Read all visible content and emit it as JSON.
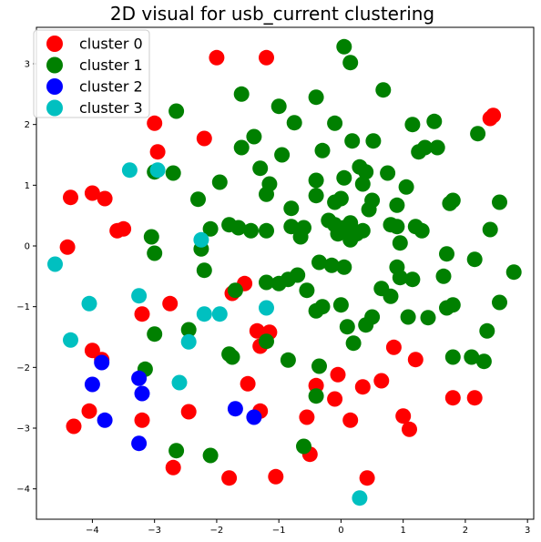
{
  "chart_data": {
    "type": "scatter",
    "title": "2D visual for usb_current clustering",
    "xlabel": "",
    "ylabel": "",
    "xlim": [
      -4.9,
      3.1
    ],
    "ylim": [
      -4.5,
      3.6
    ],
    "x_ticks": [
      -4,
      -3,
      -2,
      -1,
      0,
      1,
      2,
      3
    ],
    "y_ticks": [
      -4,
      -3,
      -2,
      -1,
      0,
      1,
      2,
      3
    ],
    "grid": false,
    "legend_position": "top-left",
    "series": [
      {
        "name": "cluster 0",
        "color": "#ff0000",
        "points": [
          [
            -2.0,
            3.1
          ],
          [
            -1.2,
            3.1
          ],
          [
            2.4,
            2.1
          ],
          [
            2.45,
            2.15
          ],
          [
            -3.0,
            2.02
          ],
          [
            -2.2,
            1.77
          ],
          [
            -2.95,
            1.55
          ],
          [
            -4.35,
            0.8
          ],
          [
            -4.0,
            0.87
          ],
          [
            -3.8,
            0.78
          ],
          [
            -3.6,
            0.25
          ],
          [
            -3.5,
            0.28
          ],
          [
            -4.4,
            -0.02
          ],
          [
            -2.75,
            -0.95
          ],
          [
            -3.2,
            -1.12
          ],
          [
            -1.75,
            -0.78
          ],
          [
            -1.55,
            -0.62
          ],
          [
            -1.35,
            -1.4
          ],
          [
            -1.15,
            -1.42
          ],
          [
            -1.3,
            -1.65
          ],
          [
            -4.0,
            -1.72
          ],
          [
            -3.85,
            -1.87
          ],
          [
            -4.05,
            -2.72
          ],
          [
            -4.3,
            -2.97
          ],
          [
            -3.2,
            -2.87
          ],
          [
            -2.45,
            -2.73
          ],
          [
            -1.5,
            -2.27
          ],
          [
            -1.3,
            -2.72
          ],
          [
            -0.4,
            -2.3
          ],
          [
            -0.05,
            -2.12
          ],
          [
            -0.1,
            -2.52
          ],
          [
            0.35,
            -2.32
          ],
          [
            0.15,
            -2.87
          ],
          [
            -0.55,
            -2.82
          ],
          [
            0.65,
            -2.22
          ],
          [
            0.85,
            -1.67
          ],
          [
            1.2,
            -1.87
          ],
          [
            1.0,
            -2.8
          ],
          [
            1.1,
            -3.02
          ],
          [
            1.8,
            -2.5
          ],
          [
            2.15,
            -2.5
          ],
          [
            -0.5,
            -3.43
          ],
          [
            -2.7,
            -3.65
          ],
          [
            -1.8,
            -3.82
          ],
          [
            -1.05,
            -3.8
          ],
          [
            0.42,
            -3.82
          ]
        ]
      },
      {
        "name": "cluster 1",
        "color": "#008000",
        "points": [
          [
            0.05,
            3.28
          ],
          [
            0.15,
            3.02
          ],
          [
            0.68,
            2.57
          ],
          [
            -1.6,
            2.5
          ],
          [
            -0.4,
            2.45
          ],
          [
            -1.0,
            2.3
          ],
          [
            -2.65,
            2.22
          ],
          [
            -0.75,
            2.03
          ],
          [
            -0.1,
            2.02
          ],
          [
            1.15,
            2.0
          ],
          [
            1.5,
            2.05
          ],
          [
            2.2,
            1.85
          ],
          [
            -1.4,
            1.8
          ],
          [
            -1.6,
            1.62
          ],
          [
            0.18,
            1.73
          ],
          [
            0.52,
            1.73
          ],
          [
            -0.95,
            1.5
          ],
          [
            1.35,
            1.62
          ],
          [
            1.55,
            1.62
          ],
          [
            1.25,
            1.55
          ],
          [
            -0.3,
            1.57
          ],
          [
            -1.3,
            1.28
          ],
          [
            -2.7,
            1.2
          ],
          [
            -3.0,
            1.22
          ],
          [
            0.3,
            1.3
          ],
          [
            0.4,
            1.22
          ],
          [
            0.75,
            1.2
          ],
          [
            -1.95,
            1.05
          ],
          [
            -0.4,
            1.08
          ],
          [
            0.05,
            1.12
          ],
          [
            0.35,
            1.02
          ],
          [
            1.05,
            0.97
          ],
          [
            -1.15,
            1.02
          ],
          [
            -1.2,
            0.85
          ],
          [
            -0.4,
            0.83
          ],
          [
            -0.1,
            0.72
          ],
          [
            0.0,
            0.78
          ],
          [
            0.5,
            0.75
          ],
          [
            0.9,
            0.67
          ],
          [
            1.75,
            0.7
          ],
          [
            1.8,
            0.75
          ],
          [
            2.55,
            0.72
          ],
          [
            -2.3,
            0.77
          ],
          [
            -0.8,
            0.62
          ],
          [
            -0.2,
            0.42
          ],
          [
            0.45,
            0.6
          ],
          [
            -1.65,
            0.3
          ],
          [
            -1.8,
            0.35
          ],
          [
            -1.45,
            0.25
          ],
          [
            -1.2,
            0.25
          ],
          [
            -0.8,
            0.32
          ],
          [
            -0.6,
            0.3
          ],
          [
            -0.65,
            0.15
          ],
          [
            -0.1,
            0.35
          ],
          [
            0.05,
            0.3
          ],
          [
            0.15,
            0.38
          ],
          [
            0.25,
            0.2
          ],
          [
            0.35,
            0.25
          ],
          [
            0.8,
            0.35
          ],
          [
            0.9,
            0.32
          ],
          [
            1.2,
            0.32
          ],
          [
            1.3,
            0.25
          ],
          [
            2.4,
            0.27
          ],
          [
            -0.05,
            0.2
          ],
          [
            0.15,
            0.1
          ],
          [
            -2.1,
            0.28
          ],
          [
            -3.05,
            0.15
          ],
          [
            -2.25,
            -0.05
          ],
          [
            -3.0,
            -0.12
          ],
          [
            0.95,
            0.05
          ],
          [
            -2.2,
            -0.4
          ],
          [
            -0.35,
            -0.27
          ],
          [
            -0.15,
            -0.32
          ],
          [
            0.05,
            -0.35
          ],
          [
            0.9,
            -0.35
          ],
          [
            1.7,
            -0.13
          ],
          [
            2.15,
            -0.22
          ],
          [
            1.15,
            -0.55
          ],
          [
            0.95,
            -0.52
          ],
          [
            1.65,
            -0.5
          ],
          [
            2.78,
            -0.43
          ],
          [
            -1.2,
            -0.6
          ],
          [
            -1.0,
            -0.62
          ],
          [
            -0.85,
            -0.55
          ],
          [
            -0.7,
            -0.48
          ],
          [
            -0.55,
            -0.73
          ],
          [
            0.65,
            -0.7
          ],
          [
            0.8,
            -0.83
          ],
          [
            -1.7,
            -0.73
          ],
          [
            -0.3,
            -1.0
          ],
          [
            -0.4,
            -1.07
          ],
          [
            0.0,
            -0.97
          ],
          [
            1.7,
            -1.02
          ],
          [
            1.8,
            -0.97
          ],
          [
            2.55,
            -0.93
          ],
          [
            1.4,
            -1.18
          ],
          [
            1.08,
            -1.17
          ],
          [
            0.5,
            -1.17
          ],
          [
            0.4,
            -1.3
          ],
          [
            0.1,
            -1.33
          ],
          [
            -2.45,
            -1.38
          ],
          [
            -3.0,
            -1.45
          ],
          [
            2.35,
            -1.4
          ],
          [
            -1.2,
            -1.57
          ],
          [
            0.2,
            -1.6
          ],
          [
            -1.8,
            -1.78
          ],
          [
            -1.75,
            -1.83
          ],
          [
            1.8,
            -1.83
          ],
          [
            2.1,
            -1.83
          ],
          [
            2.3,
            -1.9
          ],
          [
            -0.85,
            -1.88
          ],
          [
            -0.35,
            -1.98
          ],
          [
            -3.15,
            -2.03
          ],
          [
            -0.4,
            -2.47
          ],
          [
            -0.6,
            -3.3
          ],
          [
            -2.65,
            -3.37
          ],
          [
            -2.1,
            -3.45
          ]
        ]
      },
      {
        "name": "cluster 2",
        "color": "#0000ff",
        "points": [
          [
            -3.85,
            -1.92
          ],
          [
            -4.0,
            -2.28
          ],
          [
            -3.25,
            -2.18
          ],
          [
            -3.2,
            -2.43
          ],
          [
            -3.8,
            -2.87
          ],
          [
            -1.7,
            -2.68
          ],
          [
            -1.4,
            -2.82
          ],
          [
            -3.25,
            -3.25
          ]
        ]
      },
      {
        "name": "cluster 3",
        "color": "#00c0c0",
        "points": [
          [
            -3.4,
            1.25
          ],
          [
            -2.95,
            1.25
          ],
          [
            -2.25,
            0.1
          ],
          [
            -4.6,
            -0.3
          ],
          [
            -4.05,
            -0.95
          ],
          [
            -3.25,
            -0.82
          ],
          [
            -2.2,
            -1.12
          ],
          [
            -1.95,
            -1.12
          ],
          [
            -1.2,
            -1.02
          ],
          [
            -4.35,
            -1.55
          ],
          [
            -2.45,
            -1.58
          ],
          [
            -2.6,
            -2.25
          ],
          [
            0.3,
            -4.15
          ]
        ]
      }
    ]
  }
}
